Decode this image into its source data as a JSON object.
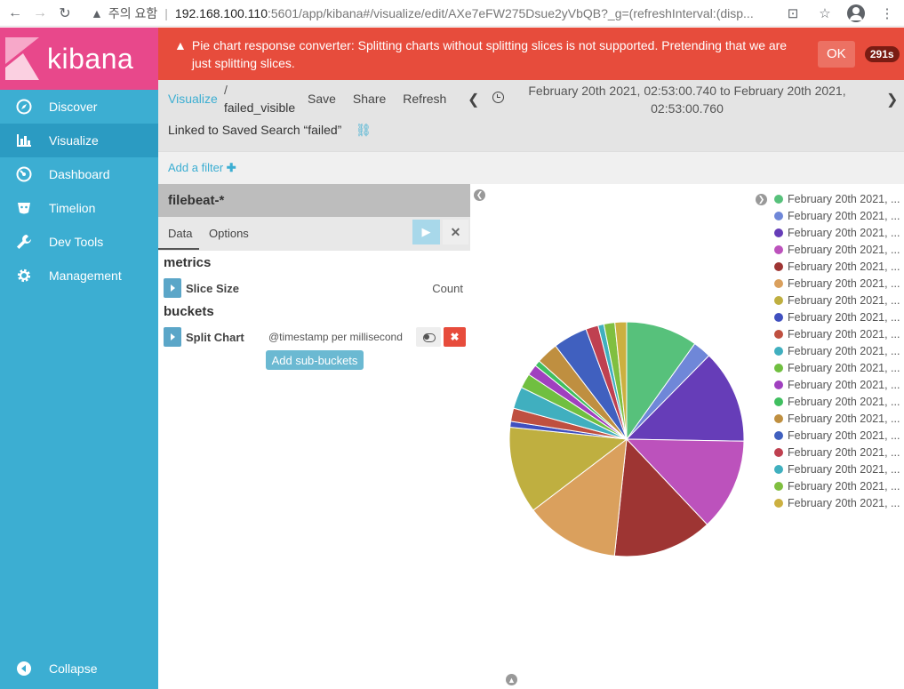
{
  "browser": {
    "warning": "주의 요함",
    "url_host": "192.168.100.110",
    "url_path": ":5601/app/kibana#/visualize/edit/AXe7eFW275Dsue2yVbQB?_g=(refreshInterval:(disp..."
  },
  "sidebar": {
    "logo": "kibana",
    "items": [
      {
        "label": "Discover",
        "icon": "compass-icon"
      },
      {
        "label": "Visualize",
        "icon": "bar-chart-icon"
      },
      {
        "label": "Dashboard",
        "icon": "dashboard-icon"
      },
      {
        "label": "Timelion",
        "icon": "timelion-icon"
      },
      {
        "label": "Dev Tools",
        "icon": "wrench-icon"
      },
      {
        "label": "Management",
        "icon": "gear-icon"
      }
    ],
    "collapse": "Collapse"
  },
  "error": {
    "message": "Pie chart response converter: Splitting charts without splitting slices is not supported. Pretending that we are just splitting slices.",
    "ok": "OK",
    "timer": "291s"
  },
  "topnav": {
    "breadcrumb_link": "Visualize",
    "breadcrumb_sep": "/",
    "title": "failed_visible",
    "menu": [
      "Save",
      "Share",
      "Refresh"
    ],
    "time_range": "February 20th 2021, 02:53:00.740 to February 20th 2021, 02:53:00.760",
    "linked": "Linked to Saved Search “failed”"
  },
  "filter": {
    "add_filter": "Add a filter",
    "plus": "✚"
  },
  "editor": {
    "index": "filebeat-*",
    "tabs": [
      "Data",
      "Options"
    ],
    "metrics_title": "metrics",
    "metric": {
      "label": "Slice Size",
      "value": "Count"
    },
    "buckets_title": "buckets",
    "bucket": {
      "label": "Split Chart",
      "desc": "@timestamp per millisecond"
    },
    "add_sub_buckets": "Add sub-buckets"
  },
  "legend_label": "February 20th 2021, ...",
  "chart_data": {
    "type": "pie",
    "values": [
      9.8,
      2.5,
      12.8,
      12.6,
      13.6,
      12.9,
      11.9,
      0.8,
      1.8,
      3.0,
      2.0,
      1.5,
      0.8,
      3.0,
      4.7,
      1.7,
      0.8,
      1.5,
      1.6
    ],
    "colors": [
      "#57c17b",
      "#6f87d8",
      "#663db8",
      "#bc52bc",
      "#9e3533",
      "#daa05d",
      "#bfaf40",
      "#4050bf",
      "#bf5040",
      "#40afbf",
      "#70bf40",
      "#a040bf",
      "#40bf60",
      "#bf8f40",
      "#4060bf",
      "#bf4050",
      "#40b0bf",
      "#80bf40",
      "#ccb040"
    ]
  }
}
